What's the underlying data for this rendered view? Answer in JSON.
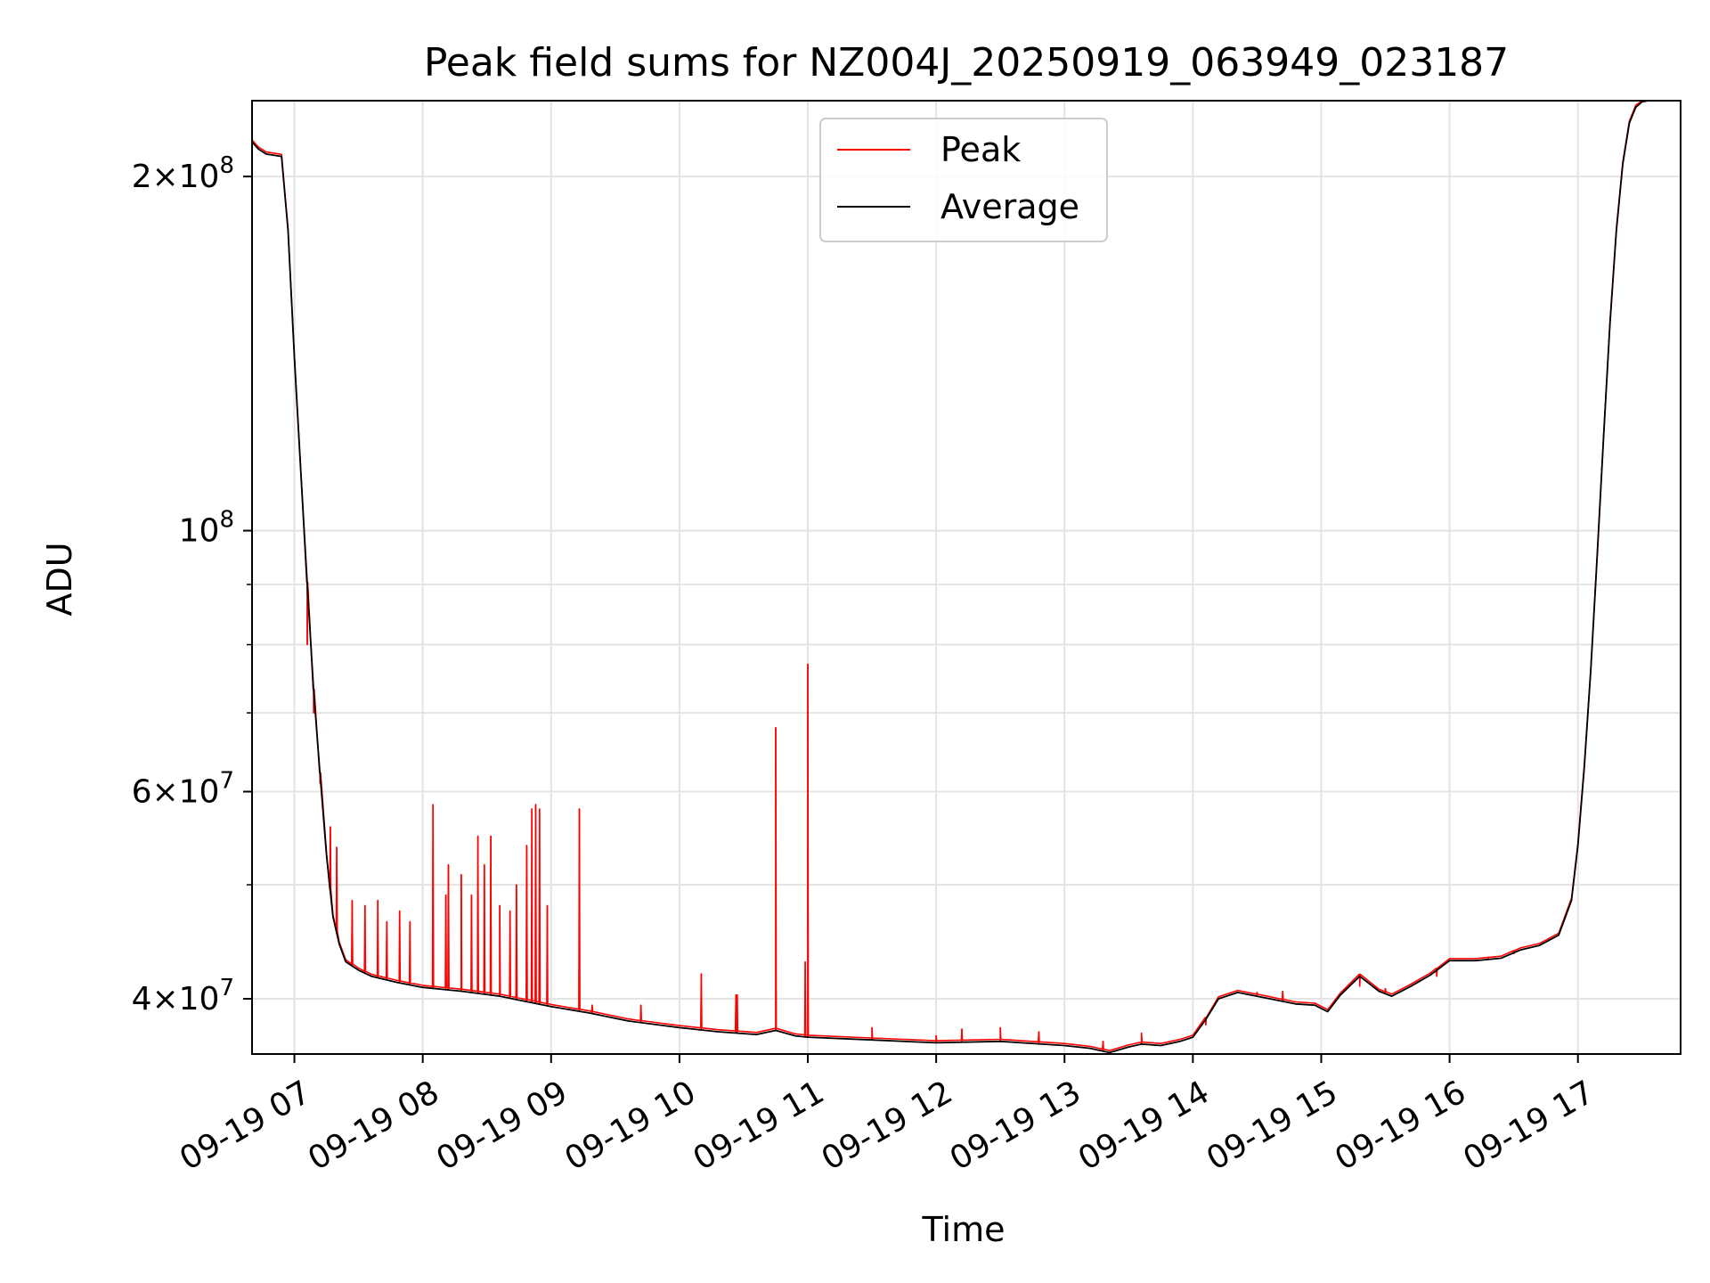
{
  "chart_data": {
    "type": "line",
    "title": "Peak field sums for NZ004J_20250919_063949_023187",
    "xlabel": "Time",
    "ylabel": "ADU",
    "yscale": "log",
    "ylim": [
      35900000,
      232000000
    ],
    "xlim": [
      6.67,
      17.8
    ],
    "grid": true,
    "legend": {
      "location": "upper-center",
      "entries": [
        "Peak",
        "Average"
      ]
    },
    "x_ticks": [
      {
        "value": 7,
        "label": "09-19 07"
      },
      {
        "value": 8,
        "label": "09-19 08"
      },
      {
        "value": 9,
        "label": "09-19 09"
      },
      {
        "value": 10,
        "label": "09-19 10"
      },
      {
        "value": 11,
        "label": "09-19 11"
      },
      {
        "value": 12,
        "label": "09-19 12"
      },
      {
        "value": 13,
        "label": "09-19 13"
      },
      {
        "value": 14,
        "label": "09-19 14"
      },
      {
        "value": 15,
        "label": "09-19 15"
      },
      {
        "value": 16,
        "label": "09-19 16"
      },
      {
        "value": 17,
        "label": "09-19 17"
      }
    ],
    "y_major_ticks": [
      {
        "value": 200000000,
        "mantissa": "2",
        "times": "×",
        "base": "10",
        "exp": "8"
      },
      {
        "value": 100000000,
        "mantissa": "",
        "times": "",
        "base": "10",
        "exp": "8"
      },
      {
        "value": 60000000,
        "mantissa": "6",
        "times": "×",
        "base": "10",
        "exp": "7"
      },
      {
        "value": 40000000,
        "mantissa": "4",
        "times": "×",
        "base": "10",
        "exp": "7"
      }
    ],
    "y_minor_ticks": [
      90000000,
      80000000,
      70000000,
      50000000
    ],
    "series": [
      {
        "name": "Average",
        "color": "#000000",
        "x": [
          6.67,
          6.72,
          6.78,
          6.9,
          6.95,
          7.0,
          7.05,
          7.1,
          7.15,
          7.2,
          7.25,
          7.3,
          7.35,
          7.4,
          7.5,
          7.6,
          7.8,
          8.0,
          8.3,
          8.6,
          9.0,
          9.3,
          9.6,
          10.0,
          10.3,
          10.6,
          10.75,
          10.9,
          11.0,
          11.5,
          12.0,
          12.5,
          13.0,
          13.2,
          13.35,
          13.5,
          13.6,
          13.75,
          13.9,
          14.0,
          14.1,
          14.2,
          14.35,
          14.6,
          14.8,
          14.95,
          15.05,
          15.15,
          15.3,
          15.45,
          15.55,
          15.7,
          15.85,
          16.0,
          16.2,
          16.4,
          16.55,
          16.7,
          16.85,
          16.95,
          17.0,
          17.05,
          17.1,
          17.15,
          17.2,
          17.25,
          17.3,
          17.35,
          17.4,
          17.45,
          17.5,
          17.55,
          17.6,
          17.7,
          17.8
        ],
        "y": [
          214000000,
          211000000,
          209000000,
          208000000,
          180000000,
          140000000,
          112000000,
          90000000,
          73000000,
          62000000,
          53000000,
          47000000,
          44500000,
          43000000,
          42300000,
          41800000,
          41300000,
          40900000,
          40600000,
          40200000,
          39400000,
          38900000,
          38300000,
          37800000,
          37500000,
          37300000,
          37600000,
          37200000,
          37100000,
          36900000,
          36700000,
          36800000,
          36500000,
          36300000,
          36000000,
          36400000,
          36600000,
          36500000,
          36800000,
          37100000,
          38400000,
          40000000,
          40500000,
          40000000,
          39600000,
          39500000,
          39000000,
          40300000,
          41800000,
          40600000,
          40200000,
          41000000,
          41900000,
          43100000,
          43100000,
          43300000,
          44000000,
          44400000,
          45300000,
          48500000,
          54000000,
          63000000,
          76000000,
          95000000,
          120000000,
          150000000,
          180000000,
          205000000,
          222000000,
          229000000,
          231500000,
          232000000,
          232000000,
          232000000,
          232000000
        ]
      },
      {
        "name": "Peak",
        "color": "#ff0000",
        "x": [
          7.1,
          7.15,
          7.2,
          7.28,
          7.33,
          7.45,
          7.55,
          7.65,
          7.72,
          7.82,
          7.9,
          8.08,
          8.18,
          8.2,
          8.3,
          8.38,
          8.43,
          8.48,
          8.53,
          8.6,
          8.68,
          8.73,
          8.81,
          8.85,
          8.88,
          8.91,
          8.97,
          9.22,
          9.32,
          9.7,
          10.17,
          10.44,
          10.45,
          10.75,
          10.98,
          11.0,
          11.5,
          12.0,
          12.2,
          12.5,
          12.8,
          13.3,
          13.6,
          14.1,
          14.5,
          14.7,
          15.3,
          15.5,
          15.9,
          16.3,
          16.5
        ],
        "y": [
          80000000,
          70000000,
          61000000,
          56000000,
          53800000,
          48500000,
          48000000,
          48500000,
          46500000,
          47500000,
          46500000,
          58500000,
          49000000,
          52000000,
          51000000,
          49000000,
          55000000,
          52000000,
          55000000,
          48000000,
          47500000,
          50000000,
          54000000,
          58000000,
          58500000,
          58000000,
          48000000,
          58000000,
          39500000,
          39500000,
          42000000,
          40300000,
          40300000,
          68000000,
          43000000,
          77000000,
          37800000,
          37200000,
          37700000,
          37800000,
          37500000,
          36800000,
          37400000,
          38000000,
          40500000,
          40600000,
          41000000,
          40800000,
          41800000,
          43400000,
          43700000
        ]
      }
    ]
  }
}
